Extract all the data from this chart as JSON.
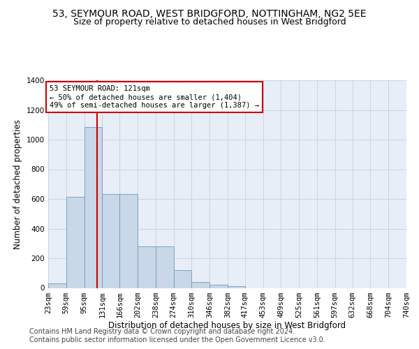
{
  "title1": "53, SEYMOUR ROAD, WEST BRIDGFORD, NOTTINGHAM, NG2 5EE",
  "title2": "Size of property relative to detached houses in West Bridgford",
  "xlabel": "Distribution of detached houses by size in West Bridgford",
  "ylabel": "Number of detached properties",
  "footer1": "Contains HM Land Registry data © Crown copyright and database right 2024.",
  "footer2": "Contains public sector information licensed under the Open Government Licence v3.0.",
  "annotation_line1": "53 SEYMOUR ROAD: 121sqm",
  "annotation_line2": "← 50% of detached houses are smaller (1,404)",
  "annotation_line3": "49% of semi-detached houses are larger (1,387) →",
  "property_size": 121,
  "bin_edges": [
    23,
    59,
    95,
    131,
    166,
    202,
    238,
    274,
    310,
    346,
    382,
    417,
    453,
    489,
    525,
    561,
    597,
    632,
    668,
    704,
    740
  ],
  "bar_heights": [
    30,
    615,
    1085,
    635,
    635,
    278,
    278,
    120,
    42,
    22,
    14,
    0,
    0,
    0,
    0,
    0,
    0,
    0,
    0,
    0
  ],
  "bar_color": "#c8d8e8",
  "bar_edge_color": "#7098b8",
  "vline_color": "#cc0000",
  "annotation_box_edge": "#cc0000",
  "background_color": "#e8eef8",
  "ylim": [
    0,
    1400
  ],
  "yticks": [
    0,
    200,
    400,
    600,
    800,
    1000,
    1200,
    1400
  ],
  "title1_fontsize": 10,
  "title2_fontsize": 9,
  "axis_label_fontsize": 8.5,
  "tick_fontsize": 7.5,
  "footer_fontsize": 7
}
